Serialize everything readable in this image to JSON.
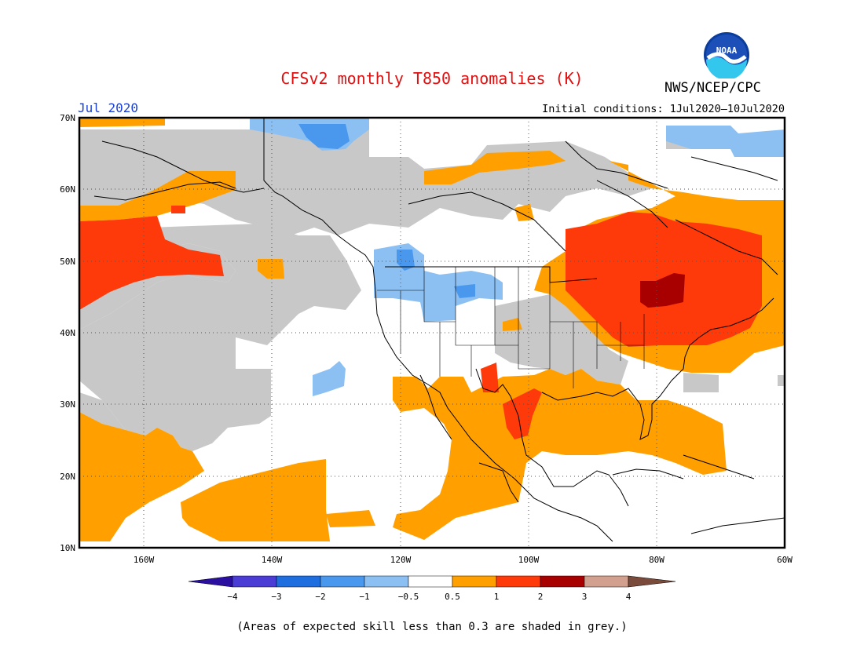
{
  "header": {
    "title": "CFSv2 monthly T850 anomalies (K)",
    "agency": "NWS/NCEP/CPC",
    "month": "Jul 2020",
    "initial_conditions": "Initial conditions: 1Jul2020–10Jul2020",
    "logo_text": "NOAA"
  },
  "map": {
    "lon_labels": [
      "160W",
      "140W",
      "120W",
      "100W",
      "80W",
      "60W"
    ],
    "lat_labels": [
      "70N",
      "60N",
      "50N",
      "40N",
      "30N",
      "20N",
      "10N"
    ],
    "extent": {
      "lon": [
        -170,
        -60
      ],
      "lat": [
        10,
        70
      ]
    },
    "grid": "dotted",
    "skill_mask_color": "#c8c8c8"
  },
  "colorbar": {
    "tick_labels": [
      "−4",
      "−3",
      "−2",
      "−1",
      "−0.5",
      "0.5",
      "1",
      "2",
      "3",
      "4"
    ],
    "colors": [
      "#2a0fa0",
      "#4a3dd6",
      "#1f6ee0",
      "#4a98ee",
      "#8cc0f2",
      "#ffffff",
      "#ff9f00",
      "#ff3a0a",
      "#a80000",
      "#d2a08e",
      "#7a4a3a"
    ]
  },
  "footnote": "(Areas of expected skill less than 0.3 are shaded in grey.)"
}
